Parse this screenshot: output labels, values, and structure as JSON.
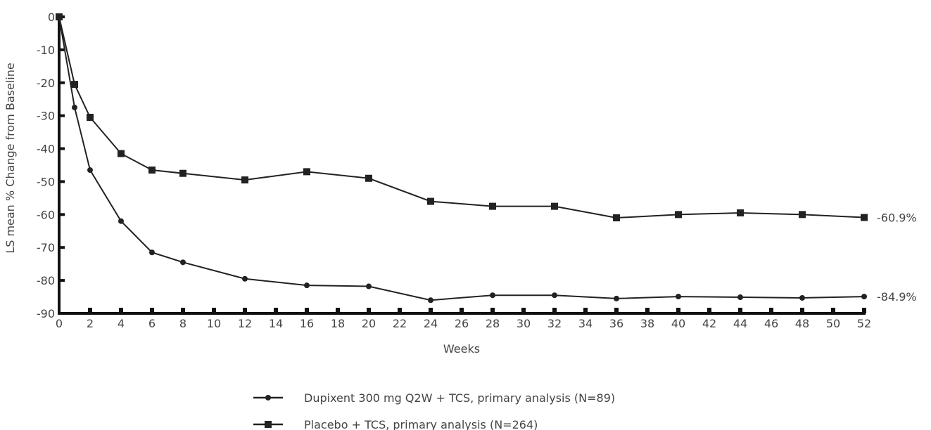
{
  "chart_data": {
    "type": "line",
    "xlabel": "Weeks",
    "ylabel": "LS mean % Change from Baseline",
    "xlim": [
      0,
      52
    ],
    "ylim": [
      -90,
      0
    ],
    "x_ticks": [
      0,
      2,
      4,
      6,
      8,
      10,
      12,
      14,
      16,
      18,
      20,
      22,
      24,
      26,
      28,
      30,
      32,
      34,
      36,
      38,
      40,
      42,
      44,
      46,
      48,
      50,
      52
    ],
    "y_ticks": [
      0,
      -10,
      -20,
      -30,
      -40,
      -50,
      -60,
      -70,
      -80,
      -90
    ],
    "grid": false,
    "legend_position": "bottom-center",
    "series": [
      {
        "name": "Dupixent 300 mg Q2W + TCS, primary analysis (N=89)",
        "marker": "circle",
        "end_label": "-84.9%",
        "x": [
          0,
          1,
          2,
          4,
          6,
          8,
          12,
          16,
          20,
          24,
          28,
          32,
          36,
          40,
          44,
          48,
          52
        ],
        "y": [
          0,
          -27.5,
          -46.5,
          -62,
          -71.5,
          -74.5,
          -79.5,
          -81.5,
          -81.8,
          -86,
          -84.5,
          -84.5,
          -85.5,
          -84.9,
          -85.1,
          -85.3,
          -84.9
        ]
      },
      {
        "name": "Placebo + TCS, primary analysis  (N=264)",
        "marker": "square",
        "end_label": "-60.9%",
        "x": [
          0,
          1,
          2,
          4,
          6,
          8,
          12,
          16,
          20,
          24,
          28,
          32,
          36,
          40,
          44,
          48,
          52
        ],
        "y": [
          0,
          -20.5,
          -30.5,
          -41.5,
          -46.5,
          -47.5,
          -49.5,
          -47,
          -49,
          -56,
          -57.5,
          -57.5,
          -61,
          -60,
          -59.5,
          -60,
          -60.9
        ]
      }
    ]
  },
  "colors": {
    "line": "#222222",
    "axis": "#111111",
    "text": "#444444"
  }
}
